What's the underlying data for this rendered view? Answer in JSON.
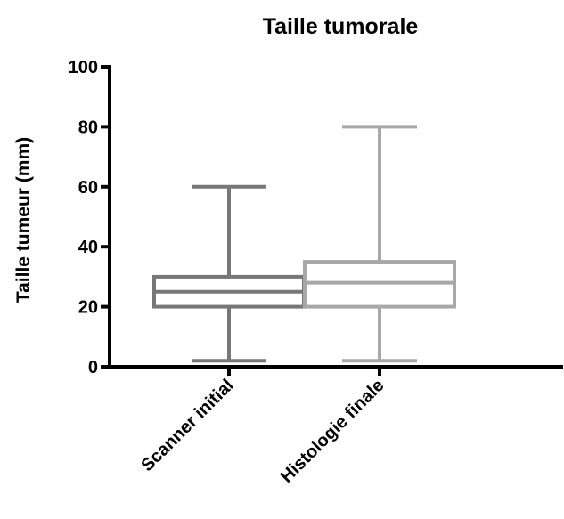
{
  "chart_data": {
    "type": "box",
    "title": "Taille tumorale",
    "ylabel": "Taille tumeur (mm)",
    "xlabel": "",
    "ylim": [
      0,
      100
    ],
    "yticks": [
      0,
      20,
      40,
      60,
      80,
      100
    ],
    "ytick_labels": [
      "0",
      "20",
      "40",
      "60",
      "80",
      "100"
    ],
    "grid": false,
    "categories": [
      "Scanner initial",
      "Histologie finale"
    ],
    "series": [
      {
        "category": "Scanner initial",
        "min": 2,
        "q1": 20,
        "median": 25,
        "q3": 30,
        "max": 60,
        "color": "#777777"
      },
      {
        "category": "Histologie finale",
        "min": 2,
        "q1": 20,
        "median": 28,
        "q3": 35,
        "max": 80,
        "color": "#a8a8a8"
      }
    ]
  }
}
